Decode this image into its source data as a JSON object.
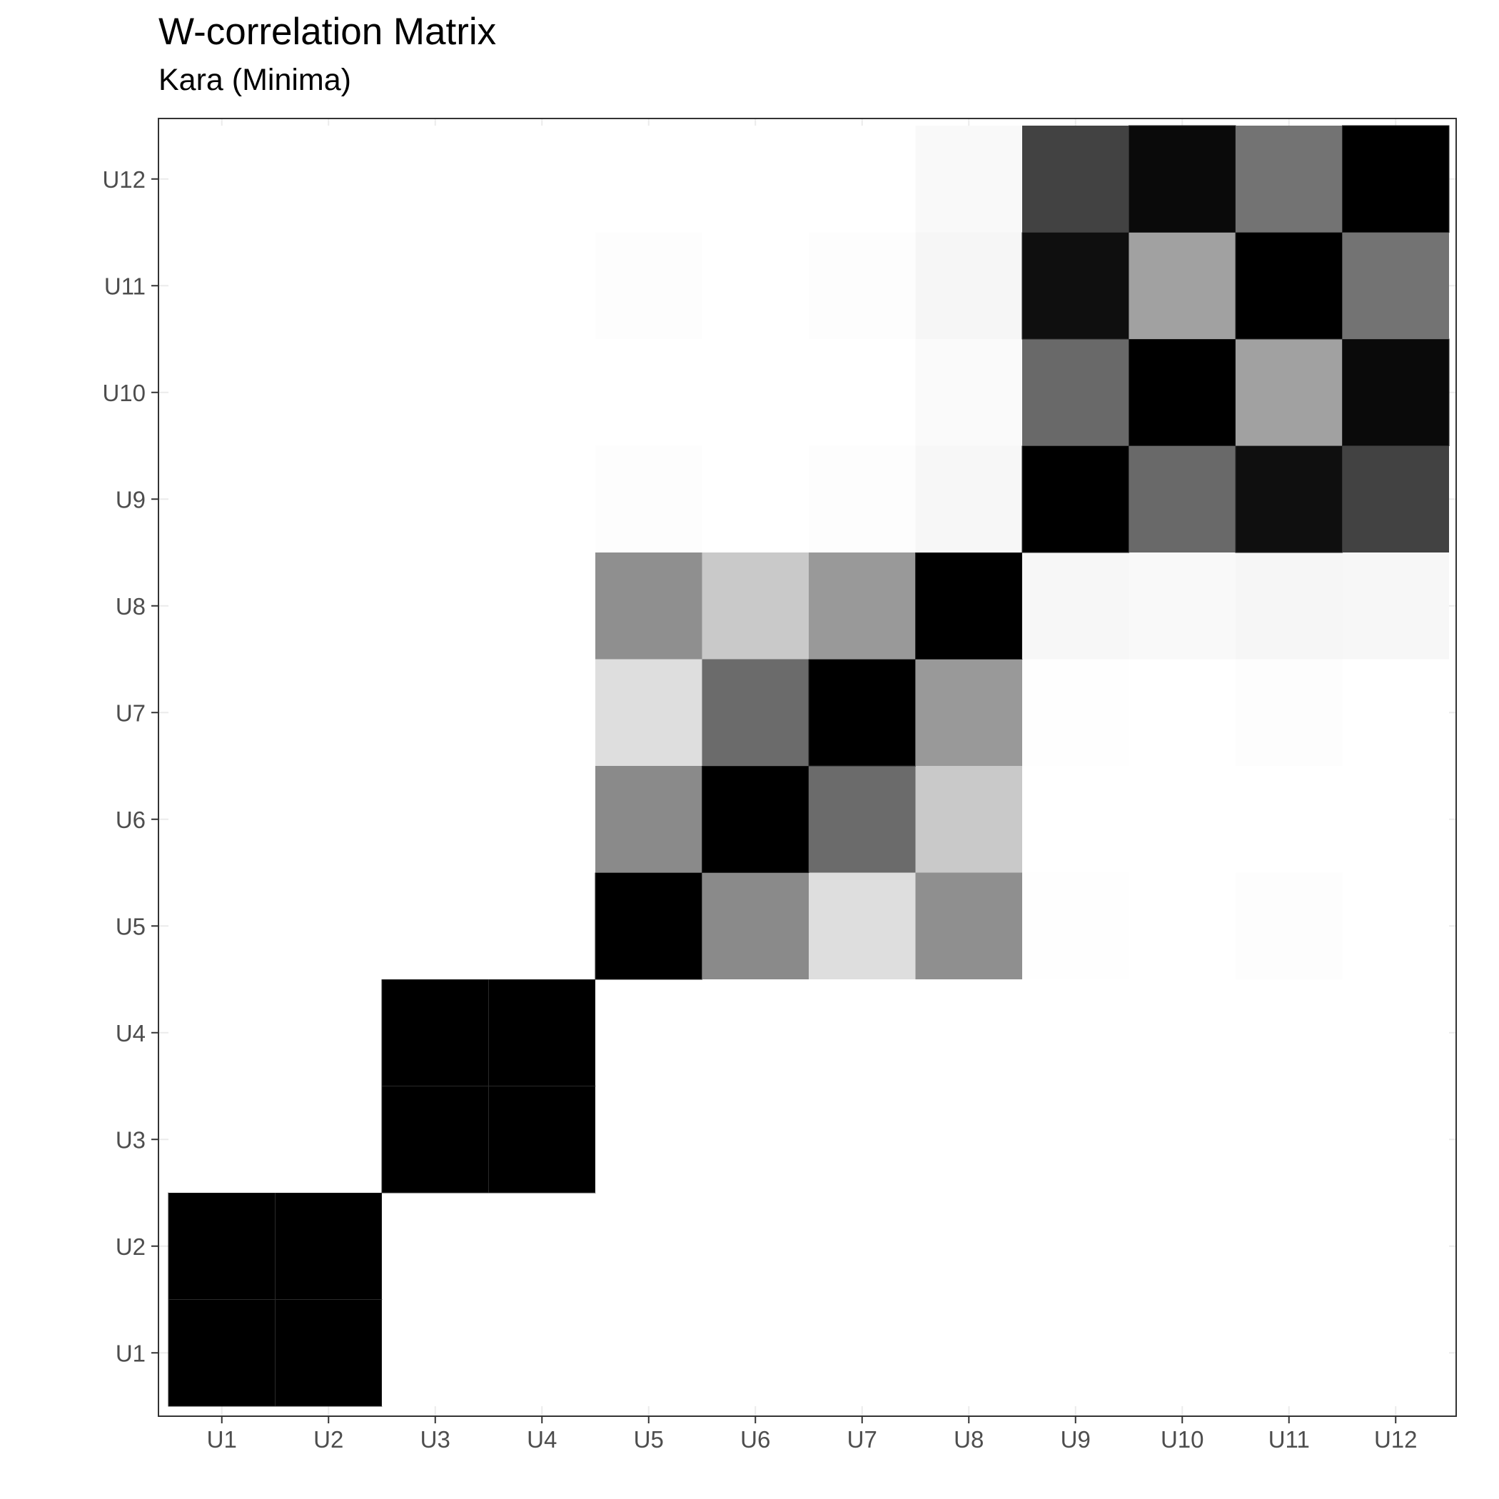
{
  "chart_data": {
    "type": "heatmap",
    "title": "W-correlation Matrix",
    "subtitle": "Kara (Minima)",
    "xlabel": "",
    "ylabel": "",
    "x_categories": [
      "U1",
      "U2",
      "U3",
      "U4",
      "U5",
      "U6",
      "U7",
      "U8",
      "U9",
      "U10",
      "U11",
      "U12"
    ],
    "y_categories": [
      "U1",
      "U2",
      "U3",
      "U4",
      "U5",
      "U6",
      "U7",
      "U8",
      "U9",
      "U10",
      "U11",
      "U12"
    ],
    "value_range": [
      0,
      1
    ],
    "color_low": "#ffffff",
    "color_high": "#000000",
    "grid": true,
    "legend": "none",
    "values": [
      [
        1,
        1,
        0,
        0,
        0,
        0,
        0,
        0,
        0,
        0,
        0,
        0
      ],
      [
        1,
        1,
        0,
        0,
        0,
        0,
        0,
        0,
        0,
        0,
        0,
        0
      ],
      [
        0,
        0,
        1,
        1,
        0,
        0,
        0,
        0,
        0,
        0,
        0,
        0
      ],
      [
        0,
        0,
        1,
        1,
        0,
        0,
        0,
        0,
        0,
        0,
        0,
        0
      ],
      [
        0,
        0,
        0,
        0,
        1,
        0.46,
        0.13,
        0.44,
        0.004,
        0,
        0.006,
        0
      ],
      [
        0,
        0,
        0,
        0,
        0.46,
        1,
        0.58,
        0.21,
        0,
        0,
        0,
        0
      ],
      [
        0,
        0,
        0,
        0,
        0.13,
        0.58,
        1,
        0.4,
        0.004,
        0,
        0.006,
        0
      ],
      [
        0,
        0,
        0,
        0,
        0.44,
        0.21,
        0.4,
        1,
        0.03,
        0.025,
        0.035,
        0.03
      ],
      [
        0,
        0,
        0,
        0,
        0.006,
        0,
        0.006,
        0.03,
        1,
        0.59,
        0.94,
        0.74
      ],
      [
        0,
        0,
        0,
        0,
        0,
        0,
        0,
        0.02,
        0.59,
        1,
        0.37,
        0.96
      ],
      [
        0,
        0,
        0,
        0,
        0.006,
        0,
        0.006,
        0.035,
        0.94,
        0.37,
        1,
        0.55
      ],
      [
        0,
        0,
        0,
        0,
        0,
        0,
        0,
        0.025,
        0.74,
        0.96,
        0.55,
        1
      ]
    ]
  }
}
